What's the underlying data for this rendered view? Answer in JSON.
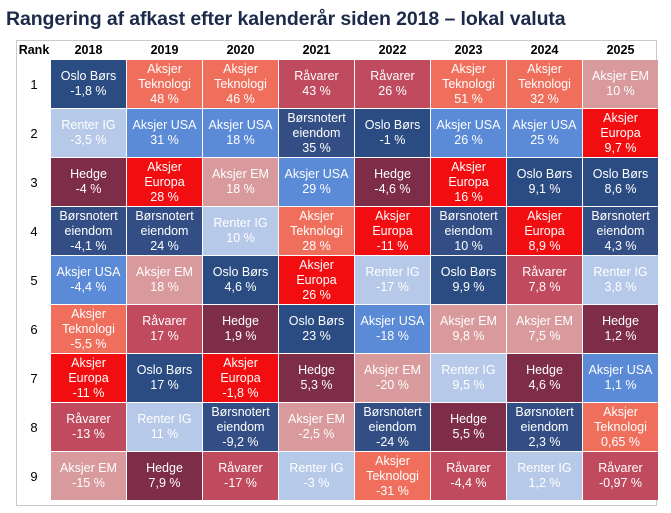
{
  "title": "Rangering af afkast efter kalenderår siden 2018 – lokal valuta",
  "rank_header": "Rank",
  "colors": {
    "Oslo Børs": "#2b4c82",
    "Aksjer Teknologi": "#ef6f5c",
    "Råvarer": "#c04a5e",
    "Aksjer EM": "#d89a9c",
    "Renter IG": "#b7c9e8",
    "Aksjer USA": "#5b8ad6",
    "Børsnotert eiendom": "#334e84",
    "Aksjer Europa": "#f20d10",
    "Hedge": "#7d2d47"
  },
  "chart_data": {
    "type": "table",
    "title": "Rangering af afkast efter kalenderår siden 2018 – lokal valuta",
    "years": [
      "2018",
      "2019",
      "2020",
      "2021",
      "2022",
      "2023",
      "2024",
      "2025"
    ],
    "ranks": [
      "1",
      "2",
      "3",
      "4",
      "5",
      "6",
      "7",
      "8",
      "9"
    ],
    "columns": [
      {
        "year": "2018",
        "cells": [
          {
            "name": "Oslo Børs",
            "value": "-1,8 %"
          },
          {
            "name": "Renter IG",
            "value": "-3,5 %"
          },
          {
            "name": "Hedge",
            "value": "-4 %"
          },
          {
            "name": "Børsnotert eiendom",
            "value": "-4,1 %"
          },
          {
            "name": "Aksjer USA",
            "value": "-4,4 %"
          },
          {
            "name": "Aksjer Teknologi",
            "value": "-5,5 %"
          },
          {
            "name": "Aksjer Europa",
            "value": "-11 %"
          },
          {
            "name": "Råvarer",
            "value": "-13 %"
          },
          {
            "name": "Aksjer EM",
            "value": "-15 %"
          }
        ]
      },
      {
        "year": "2019",
        "cells": [
          {
            "name": "Aksjer Teknologi",
            "value": "48 %"
          },
          {
            "name": "Aksjer USA",
            "value": "31 %"
          },
          {
            "name": "Aksjer Europa",
            "value": "28 %"
          },
          {
            "name": "Børsnotert eiendom",
            "value": "24 %"
          },
          {
            "name": "Aksjer EM",
            "value": "18 %"
          },
          {
            "name": "Råvarer",
            "value": "17 %"
          },
          {
            "name": "Oslo Børs",
            "value": "17 %"
          },
          {
            "name": "Renter IG",
            "value": "11 %"
          },
          {
            "name": "Hedge",
            "value": "7,9 %"
          }
        ]
      },
      {
        "year": "2020",
        "cells": [
          {
            "name": "Aksjer Teknologi",
            "value": "46 %"
          },
          {
            "name": "Aksjer USA",
            "value": "18 %"
          },
          {
            "name": "Aksjer EM",
            "value": "18 %"
          },
          {
            "name": "Renter IG",
            "value": "10 %"
          },
          {
            "name": "Oslo Børs",
            "value": "4,6 %"
          },
          {
            "name": "Hedge",
            "value": "1,9 %"
          },
          {
            "name": "Aksjer Europa",
            "value": "-1,8 %"
          },
          {
            "name": "Børsnotert eiendom",
            "value": "-9,2 %"
          },
          {
            "name": "Råvarer",
            "value": "-17 %"
          }
        ]
      },
      {
        "year": "2021",
        "cells": [
          {
            "name": "Råvarer",
            "value": "43 %"
          },
          {
            "name": "Børsnotert eiendom",
            "value": "35 %"
          },
          {
            "name": "Aksjer USA",
            "value": "29 %"
          },
          {
            "name": "Aksjer Teknologi",
            "value": "28 %"
          },
          {
            "name": "Aksjer Europa",
            "value": "26 %"
          },
          {
            "name": "Oslo Børs",
            "value": "23 %"
          },
          {
            "name": "Hedge",
            "value": "5,3 %"
          },
          {
            "name": "Aksjer EM",
            "value": "-2,5 %"
          },
          {
            "name": "Renter IG",
            "value": "-3 %"
          }
        ]
      },
      {
        "year": "2022",
        "cells": [
          {
            "name": "Råvarer",
            "value": "26 %"
          },
          {
            "name": "Oslo Børs",
            "value": "-1 %"
          },
          {
            "name": "Hedge",
            "value": "-4,6 %"
          },
          {
            "name": "Aksjer Europa",
            "value": "-11 %"
          },
          {
            "name": "Renter IG",
            "value": "-17 %"
          },
          {
            "name": "Aksjer USA",
            "value": "-18 %"
          },
          {
            "name": "Aksjer EM",
            "value": "-20 %"
          },
          {
            "name": "Børsnotert eiendom",
            "value": "-24 %"
          },
          {
            "name": "Aksjer Teknologi",
            "value": "-31 %"
          }
        ]
      },
      {
        "year": "2023",
        "cells": [
          {
            "name": "Aksjer Teknologi",
            "value": "51 %"
          },
          {
            "name": "Aksjer USA",
            "value": "26 %"
          },
          {
            "name": "Aksjer Europa",
            "value": "16 %"
          },
          {
            "name": "Børsnotert eiendom",
            "value": "10 %"
          },
          {
            "name": "Oslo Børs",
            "value": "9,9 %"
          },
          {
            "name": "Aksjer EM",
            "value": "9,8 %"
          },
          {
            "name": "Renter IG",
            "value": "9,5 %"
          },
          {
            "name": "Hedge",
            "value": "5,5 %"
          },
          {
            "name": "Råvarer",
            "value": "-4,4 %"
          }
        ]
      },
      {
        "year": "2024",
        "cells": [
          {
            "name": "Aksjer Teknologi",
            "value": "32 %"
          },
          {
            "name": "Aksjer USA",
            "value": "25 %"
          },
          {
            "name": "Oslo Børs",
            "value": "9,1 %"
          },
          {
            "name": "Aksjer Europa",
            "value": "8,9 %"
          },
          {
            "name": "Råvarer",
            "value": "7,8 %"
          },
          {
            "name": "Aksjer EM",
            "value": "7,5 %"
          },
          {
            "name": "Hedge",
            "value": "4,6 %"
          },
          {
            "name": "Børsnotert eiendom",
            "value": "2,3 %"
          },
          {
            "name": "Renter IG",
            "value": "1,2 %"
          }
        ]
      },
      {
        "year": "2025",
        "cells": [
          {
            "name": "Aksjer EM",
            "value": "10 %"
          },
          {
            "name": "Aksjer Europa",
            "value": "9,7 %"
          },
          {
            "name": "Oslo Børs",
            "value": "8,6 %"
          },
          {
            "name": "Børsnotert eiendom",
            "value": "4,3 %"
          },
          {
            "name": "Renter IG",
            "value": "3,8 %"
          },
          {
            "name": "Hedge",
            "value": "1,2 %"
          },
          {
            "name": "Aksjer USA",
            "value": "1,1 %"
          },
          {
            "name": "Aksjer Teknologi",
            "value": "0,65 %"
          },
          {
            "name": "Råvarer",
            "value": "-0,97 %"
          }
        ]
      }
    ]
  }
}
